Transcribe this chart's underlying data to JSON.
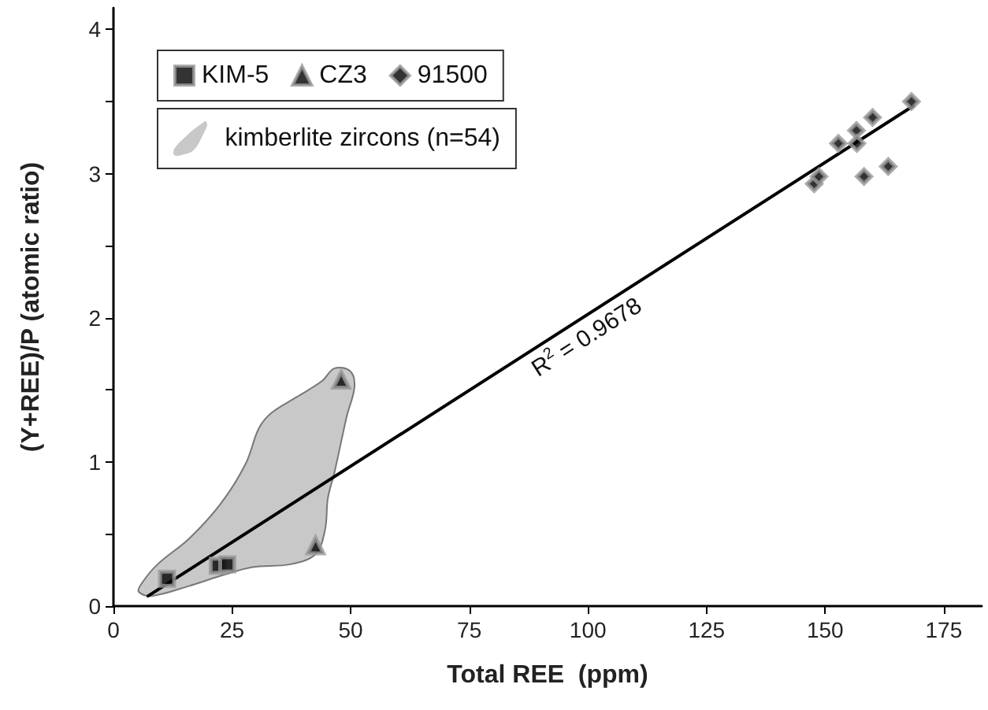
{
  "chart_data": {
    "type": "scatter",
    "xlabel": "Total REE  (ppm)",
    "ylabel": "(Y+REE)/P (atomic ratio)",
    "xlim": [
      0,
      183
    ],
    "ylim": [
      0,
      4.15
    ],
    "xticks": [
      0,
      25,
      50,
      75,
      100,
      125,
      150,
      175
    ],
    "yticks": [
      0,
      {
        "value": 0.5,
        "label": null
      },
      1,
      {
        "value": 1.5,
        "label": null
      },
      2,
      {
        "value": 2.5,
        "label": null
      },
      3,
      {
        "value": 3.5,
        "label": null
      },
      4
    ],
    "grid": false,
    "legend": "top left",
    "series": [
      {
        "name": "kimberlite zircons (n=54)",
        "type": "area",
        "color": "#c8c8c8",
        "x": [
          6.0,
          9.3,
          16.0,
          22.6,
          27.9,
          30.6,
          33.3,
          38.6,
          43.9,
          46.6,
          49.9,
          50.8,
          49.2,
          46.6,
          45.2,
          44.6,
          42.6,
          37.3,
          29.3,
          22.6,
          16.0,
          8.0,
          5.3
        ],
        "values": [
          0.16,
          0.29,
          0.47,
          0.71,
          0.99,
          1.23,
          1.34,
          1.45,
          1.56,
          1.65,
          1.63,
          1.52,
          1.32,
          0.93,
          0.75,
          0.53,
          0.36,
          0.29,
          0.27,
          0.21,
          0.14,
          0.07,
          0.1
        ]
      },
      {
        "type": "line",
        "color": "#000000",
        "marker": "none",
        "x": [
          7.3,
          168.6
        ],
        "values": [
          0.07,
          3.47
        ]
      },
      {
        "name": "KIM-5",
        "color": "#000000",
        "marker": "square",
        "x": [
          11.3,
          22,
          24
        ],
        "values": [
          0.19,
          0.28,
          0.29
        ]
      },
      {
        "name": "CZ3",
        "color": "#000000",
        "marker": "triangle",
        "x": [
          42.6,
          48
        ],
        "values": [
          0.42,
          1.57
        ]
      },
      {
        "name": "91500",
        "color": "#000000",
        "marker": "diamond",
        "x": [
          147.7,
          148.7,
          152.8,
          156.6,
          156.7,
          160,
          158.2,
          163.3,
          168.2
        ],
        "values": [
          2.93,
          2.98,
          3.21,
          3.3,
          3.21,
          3.39,
          2.98,
          3.05,
          3.5
        ]
      }
    ],
    "annotations": [
      "R$^{2}$ = 0.9678"
    ]
  }
}
